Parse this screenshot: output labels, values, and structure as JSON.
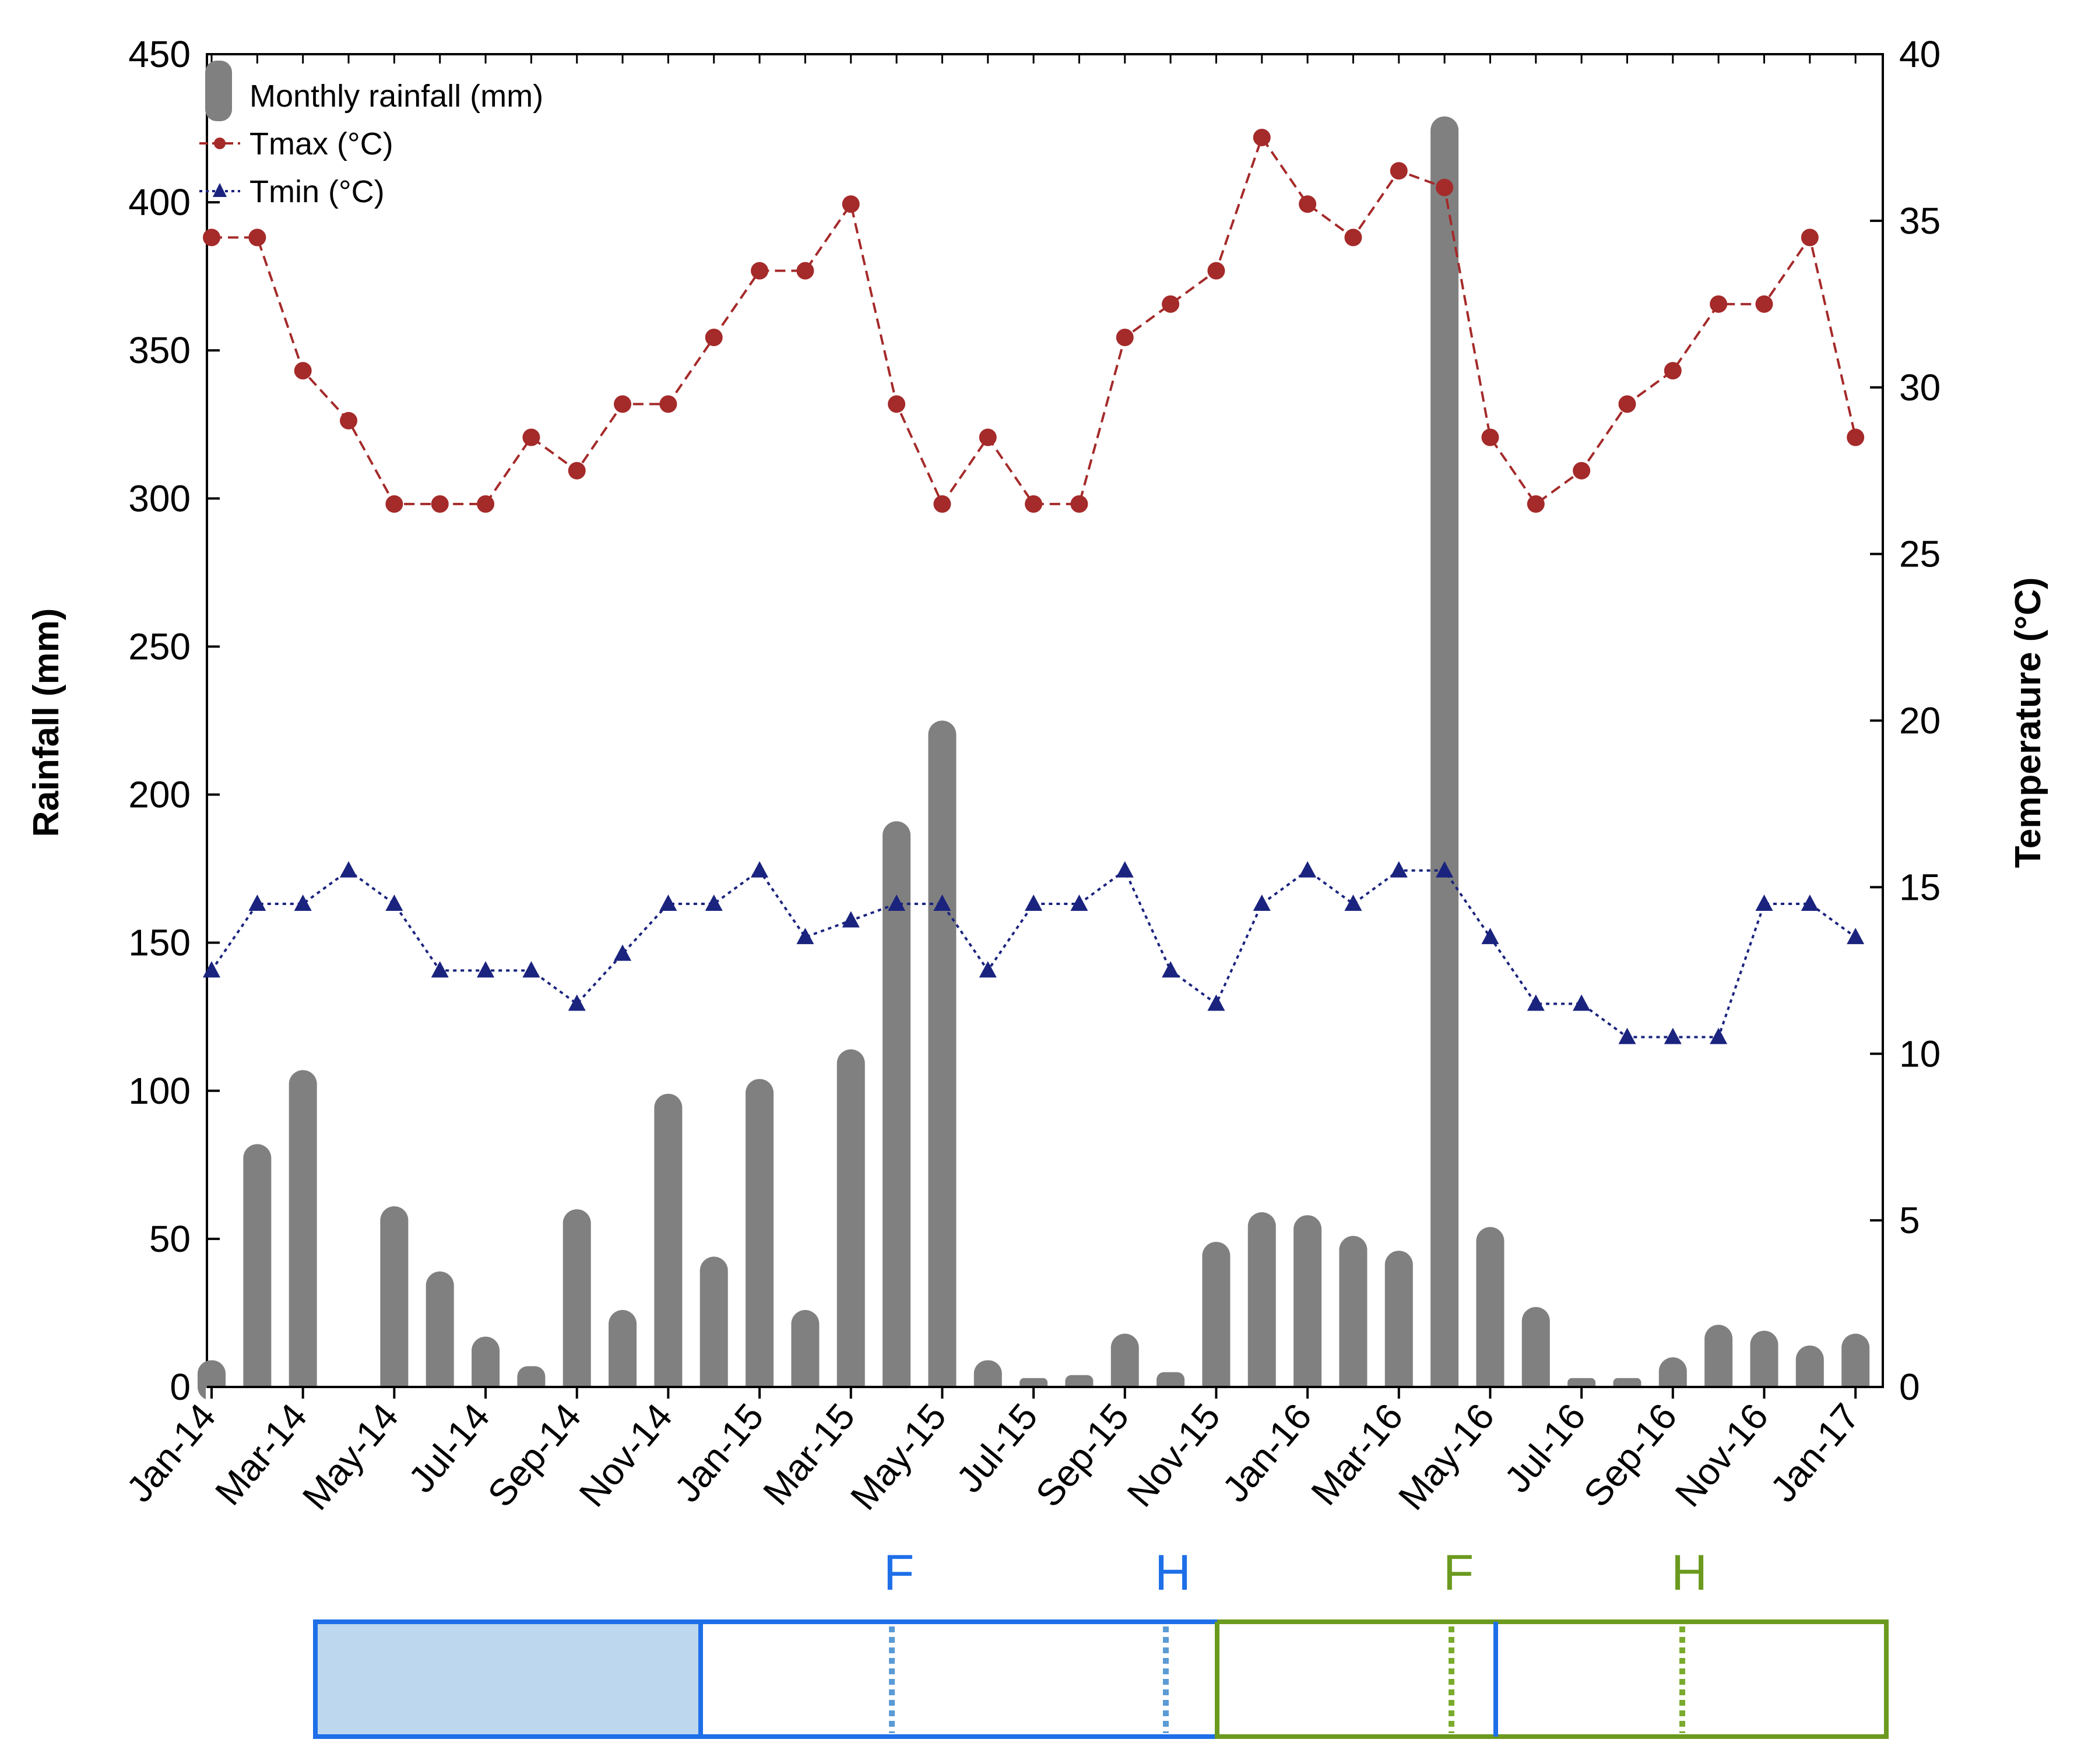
{
  "chart_data": {
    "type": "bar+line",
    "categories": [
      "Jan-14",
      "Feb-14",
      "Mar-14",
      "Apr-14",
      "May-14",
      "Jun-14",
      "Jul-14",
      "Aug-14",
      "Sep-14",
      "Oct-14",
      "Nov-14",
      "Dec-14",
      "Jan-15",
      "Feb-15",
      "Mar-15",
      "Apr-15",
      "May-15",
      "Jun-15",
      "Jul-15",
      "Aug-15",
      "Sep-15",
      "Oct-15",
      "Nov-15",
      "Dec-15",
      "Jan-16",
      "Feb-16",
      "Mar-16",
      "Apr-16",
      "May-16",
      "Jun-16",
      "Jul-16",
      "Aug-16",
      "Sep-16",
      "Oct-16",
      "Nov-16",
      "Dec-16",
      "Jan-17"
    ],
    "x_tick_labels": [
      "Jan-14",
      "Mar-14",
      "May-14",
      "Jul-14",
      "Sep-14",
      "Nov-14",
      "Jan-15",
      "Mar-15",
      "May-15",
      "Jul-15",
      "Sep-15",
      "Nov-15",
      "Jan-16",
      "Mar-16",
      "May-16",
      "Jul-16",
      "Sep-16",
      "Nov-16",
      "Jan-17"
    ],
    "rainfall": {
      "name": "Monthly rainfall (mm)",
      "values": [
        9,
        82,
        107,
        0,
        61,
        39,
        17,
        7,
        60,
        26,
        99,
        44,
        104,
        26,
        114,
        191,
        225,
        9,
        3,
        4,
        18,
        5,
        49,
        59,
        58,
        51,
        46,
        429,
        54,
        27,
        3,
        3,
        10,
        21,
        19,
        14,
        18
      ]
    },
    "tmax": {
      "name": "Tmax (°C)",
      "values": [
        34.5,
        34.5,
        30.5,
        29,
        26.5,
        26.5,
        26.5,
        28.5,
        27.5,
        29.5,
        29.5,
        31.5,
        33.5,
        33.5,
        35.5,
        29.5,
        26.5,
        28.5,
        26.5,
        26.5,
        31.5,
        32.5,
        33.5,
        37.5,
        35.5,
        34.5,
        36.5,
        36,
        28.5,
        26.5,
        27.5,
        29.5,
        30.5,
        32.5,
        32.5,
        34.5,
        28.5
      ]
    },
    "tmin": {
      "name": "Tmin (°C)",
      "values": [
        12.5,
        14.5,
        14.5,
        15.5,
        14.5,
        12.5,
        12.5,
        12.5,
        11.5,
        13,
        14.5,
        14.5,
        15.5,
        13.5,
        14,
        14.5,
        14.5,
        12.5,
        14.5,
        14.5,
        15.5,
        12.5,
        11.5,
        14.5,
        15.5,
        14.5,
        15.5,
        15.5,
        13.5,
        11.5,
        11.5,
        10.5,
        10.5,
        10.5,
        14.5,
        14.5,
        13.5
      ]
    },
    "y_left": {
      "label": "Rainfall (mm)",
      "range": [
        0,
        450
      ],
      "ticks": [
        "0",
        "50",
        "100",
        "150",
        "200",
        "250",
        "300",
        "350",
        "400",
        "450"
      ]
    },
    "y_right": {
      "label": "Temperature (°C)",
      "range": [
        0,
        40
      ],
      "ticks": [
        "0",
        "5",
        "10",
        "15",
        "20",
        "25",
        "30",
        "35",
        "40"
      ]
    },
    "legend": {
      "position": "top-left"
    },
    "colors": {
      "bar": "#808080",
      "tmax": "#a52a2a",
      "tmin": "#1a237e",
      "blue": "#1e6fe8",
      "light_blue_fill": "#bdd7ee",
      "blue_dotted": "#5b9bd5",
      "green": "#6b9a1f",
      "green_dotted": "#7aab2e"
    },
    "timeline": {
      "segments": [
        {
          "color": "blue",
          "filled": true
        },
        {
          "color": "blue",
          "filled": false
        },
        {
          "color": "green",
          "filled": false
        },
        {
          "color": "green",
          "filled": false
        }
      ],
      "markers": [
        {
          "label": "F",
          "color": "blue"
        },
        {
          "label": "H",
          "color": "blue"
        },
        {
          "label": "F",
          "color": "green"
        },
        {
          "label": "H",
          "color": "green"
        }
      ]
    }
  }
}
